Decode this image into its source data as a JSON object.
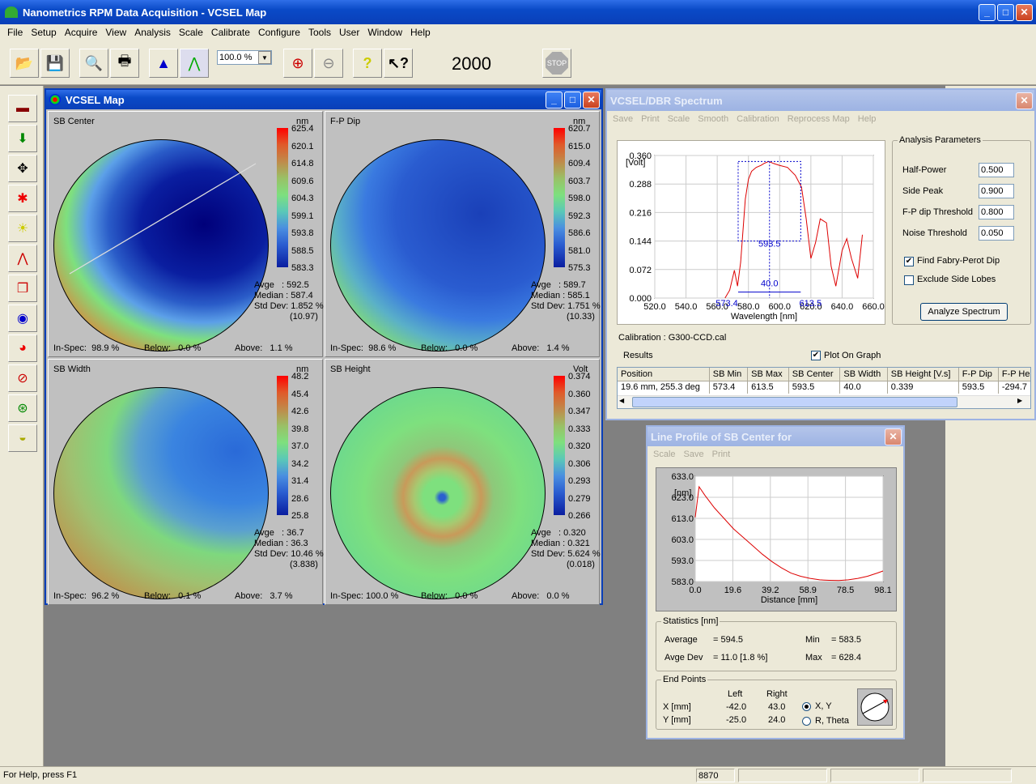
{
  "app": {
    "title": "Nanometrics RPM Data Acquisition - VCSEL Map"
  },
  "menu": [
    "File",
    "Setup",
    "Acquire",
    "View",
    "Analysis",
    "Scale",
    "Calibrate",
    "Configure",
    "Tools",
    "User",
    "Window",
    "Help"
  ],
  "toolbar": {
    "zoom": "100.0 %",
    "count": "2000",
    "stop": "STOP"
  },
  "map_window": {
    "title": "VCSEL Map",
    "panels": [
      {
        "title": "SB Center",
        "unit": "nm",
        "scale": [
          "625.4",
          "620.1",
          "614.8",
          "609.6",
          "604.3",
          "599.1",
          "593.8",
          "588.5",
          "583.3"
        ],
        "avge": "Avge   : 592.5",
        "median": "Median : 587.4",
        "std": "Std Dev: 1.852 %",
        "std2": "(10.97)",
        "inspec": "In-Spec:  98.9 %",
        "below": "Below:   0.0 %",
        "above": "Above:   1.1 %"
      },
      {
        "title": "F-P Dip",
        "unit": "nm",
        "scale": [
          "620.7",
          "615.0",
          "609.4",
          "603.7",
          "598.0",
          "592.3",
          "586.6",
          "581.0",
          "575.3"
        ],
        "avge": "Avge   : 589.7",
        "median": "Median : 585.1",
        "std": "Std Dev: 1.751 %",
        "std2": "(10.33)",
        "inspec": "In-Spec:  98.6 %",
        "below": "Below:   0.0 %",
        "above": "Above:   1.4 %"
      },
      {
        "title": "SB Width",
        "unit": "nm",
        "scale": [
          "48.2",
          "45.4",
          "42.6",
          "39.8",
          "37.0",
          "34.2",
          "31.4",
          "28.6",
          "25.8"
        ],
        "avge": "Avge   : 36.7",
        "median": "Median : 36.3",
        "std": "Std Dev: 10.46 %",
        "std2": "(3.838)",
        "inspec": "In-Spec:  96.2 %",
        "below": "Below:   0.1 %",
        "above": "Above:   3.7 %"
      },
      {
        "title": "SB Height",
        "unit": "Volt",
        "scale": [
          "0.374",
          "0.360",
          "0.347",
          "0.333",
          "0.320",
          "0.306",
          "0.293",
          "0.279",
          "0.266"
        ],
        "avge": "Avge   : 0.320",
        "median": "Median : 0.321",
        "std": "Std Dev: 5.624 %",
        "std2": "(0.018)",
        "inspec": "In-Spec: 100.0 %",
        "below": "Below:   0.0 %",
        "above": "Above:   0.0 %"
      }
    ]
  },
  "spectrum_window": {
    "title": "VCSEL/DBR Spectrum",
    "menu": [
      "Save",
      "Print",
      "Scale",
      "Smooth",
      "Calibration",
      "Reprocess Map",
      "Help"
    ],
    "chart": {
      "yunit": "[Volt]",
      "yticks": [
        "0.360",
        "0.288",
        "0.216",
        "0.144",
        "0.072",
        "0.000"
      ],
      "xticks": [
        "520.0",
        "540.0",
        "560.0",
        "580.0",
        "600.0",
        "620.0",
        "640.0",
        "660.0"
      ],
      "xlabel": "Wavelength [nm]",
      "mark_center": "593.5",
      "mark_width": "40.0",
      "mark_left": "573.4",
      "mark_right": "613.5"
    },
    "params": {
      "title": "Analysis Parameters",
      "half_power_label": "Half-Power",
      "half_power": "0.500",
      "side_peak_label": "Side Peak",
      "side_peak": "0.900",
      "fp_label": "F-P dip Threshold",
      "fp": "0.800",
      "noise_label": "Noise Threshold",
      "noise": "0.050",
      "find_fp": "Find Fabry-Perot Dip",
      "exclude": "Exclude Side Lobes",
      "analyze": "Analyze Spectrum"
    },
    "calibration": "Calibration : G300-CCD.cal",
    "results_label": "Results",
    "plot_on_graph": "Plot On Graph",
    "table": {
      "headers": [
        "Position",
        "SB Min",
        "SB Max",
        "SB Center",
        "SB Width",
        "SB Height [V.s]",
        "F-P Dip",
        "F-P Hei"
      ],
      "row": [
        "19.6 mm,  255.3 deg",
        "573.4",
        "613.5",
        "593.5",
        "40.0",
        "0.339",
        "593.5",
        "-294.7"
      ]
    }
  },
  "profile_window": {
    "title": "Line Profile of SB Center for",
    "menu": [
      "Scale",
      "Save",
      "Print"
    ],
    "chart": {
      "yunit": "[nm]",
      "yticks": [
        "633.0",
        "623.0",
        "613.0",
        "603.0",
        "593.0",
        "583.0"
      ],
      "xticks": [
        "0.0",
        "19.6",
        "39.2",
        "58.9",
        "78.5",
        "98.1"
      ],
      "xlabel": "Distance [mm]"
    },
    "stats": {
      "title": "Statistics [nm]",
      "average_label": "Average",
      "average": "=  594.5",
      "min_label": "Min",
      "min": "=  583.5",
      "avgdev_label": "Avge Dev",
      "avgdev": "= 11.0 [1.8 %]",
      "max_label": "Max",
      "max": "=  628.4"
    },
    "endpoints": {
      "title": "End Points",
      "left": "Left",
      "right": "Right",
      "x_label": "X [mm]",
      "y_label": "Y [mm]",
      "xl": "-42.0",
      "xr": "43.0",
      "yl": "-25.0",
      "yr": "24.0",
      "opt1": "X, Y",
      "opt2": "R, Theta"
    }
  },
  "statusbar": {
    "help": "For Help, press F1",
    "count": "8870"
  },
  "chart_data": [
    {
      "type": "line",
      "title": "",
      "xlabel": "Wavelength [nm]",
      "ylabel": "[Volt]",
      "xlim": [
        520,
        660
      ],
      "ylim": [
        0,
        0.36
      ],
      "series": [
        {
          "x": [
            565,
            568,
            571,
            573,
            575,
            578,
            580,
            582,
            585,
            588,
            590,
            593,
            596,
            600,
            605,
            610,
            614,
            617,
            620,
            623,
            626,
            630,
            633,
            636,
            640,
            643,
            646,
            650,
            653
          ],
          "y": [
            0.0,
            0.02,
            0.07,
            0.03,
            0.09,
            0.25,
            0.3,
            0.32,
            0.33,
            0.335,
            0.34,
            0.345,
            0.34,
            0.335,
            0.33,
            0.31,
            0.28,
            0.2,
            0.1,
            0.14,
            0.2,
            0.19,
            0.08,
            0.03,
            0.12,
            0.15,
            0.1,
            0.05,
            0.16
          ]
        }
      ]
    },
    {
      "type": "line",
      "title": "",
      "xlabel": "Distance [mm]",
      "ylabel": "[nm]",
      "xlim": [
        0,
        98.1
      ],
      "ylim": [
        583,
        633
      ],
      "series": [
        {
          "x": [
            0,
            2,
            5,
            10,
            15,
            20,
            25,
            30,
            35,
            40,
            45,
            50,
            55,
            60,
            65,
            70,
            75,
            80,
            85,
            90,
            95,
            98.1
          ],
          "y": [
            613.5,
            628,
            624,
            618,
            613,
            608,
            604,
            600,
            596,
            592.5,
            589.5,
            587,
            585.5,
            584.5,
            583.8,
            583.6,
            583.5,
            583.8,
            584.5,
            585.5,
            587,
            588
          ]
        }
      ]
    }
  ]
}
